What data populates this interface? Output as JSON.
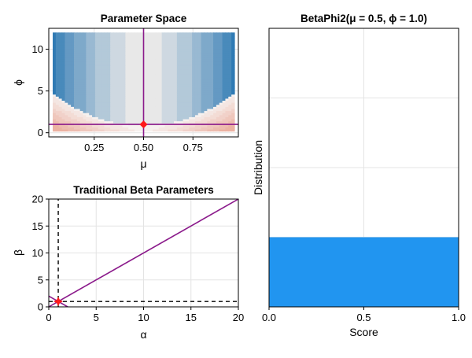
{
  "chart_data": [
    {
      "id": "parameter-space",
      "type": "heatmap",
      "title": "Parameter Space",
      "xlabel": "μ",
      "ylabel": "ϕ",
      "xlim": [
        0.02,
        0.98
      ],
      "ylim": [
        -0.5,
        12.5
      ],
      "xticks": [
        0.25,
        0.5,
        0.75
      ],
      "xtick_labels": [
        "0.25",
        "0.50",
        "0.75"
      ],
      "yticks": [
        0,
        5,
        10
      ],
      "ytick_labels": [
        "0",
        "5",
        "10"
      ],
      "field_phi_range": [
        0.2,
        12
      ],
      "selected_point": {
        "mu": 0.5,
        "phi": 1.0
      },
      "crosshair": {
        "mu": 0.5,
        "phi": 1.0
      },
      "colors": {
        "low": "#e9a28f",
        "mid": "#e8e8e8",
        "high": "#2f7ab4",
        "line": "#8b1a8b",
        "marker": "#ff1a1a"
      }
    },
    {
      "id": "traditional-beta",
      "type": "line",
      "title": "Traditional Beta Parameters",
      "xlabel": "α",
      "ylabel": "β",
      "xlim": [
        0,
        20
      ],
      "ylim": [
        0,
        20
      ],
      "xticks": [
        0,
        5,
        10,
        15,
        20
      ],
      "xtick_labels": [
        "0",
        "5",
        "10",
        "15",
        "20"
      ],
      "yticks": [
        0,
        5,
        10,
        15,
        20
      ],
      "ytick_labels": [
        "0",
        "5",
        "10",
        "15",
        "20"
      ],
      "series": [
        {
          "x": [
            0,
            20
          ],
          "y": [
            0,
            20
          ],
          "style": "solid"
        },
        {
          "x": [
            0,
            2
          ],
          "y": [
            2,
            0
          ],
          "style": "solid"
        },
        {
          "x": [
            1,
            1
          ],
          "y": [
            0,
            20
          ],
          "style": "dashed"
        },
        {
          "x": [
            0,
            20
          ],
          "y": [
            1,
            1
          ],
          "style": "dashed"
        }
      ],
      "selected_point": {
        "alpha": 1.0,
        "beta": 1.0
      },
      "colors": {
        "line": "#8b1a8b",
        "dashed": "#000000",
        "marker": "#ff1a1a"
      }
    },
    {
      "id": "betaphi2-distribution",
      "type": "area",
      "title": "BetaPhi2(μ = 0.5, ϕ =  1.0)",
      "xlabel": "Score",
      "ylabel": "Distribution",
      "xlim": [
        0,
        1
      ],
      "ylim": [
        0,
        4
      ],
      "xticks": [
        0,
        0.5,
        1
      ],
      "xtick_labels": [
        "0.0",
        "0.5",
        "1.0"
      ],
      "yticks": [
        1,
        2,
        3,
        4
      ],
      "x": [
        0,
        1
      ],
      "y": [
        1.0,
        1.0
      ],
      "colors": {
        "fill": "#2195f0"
      }
    }
  ]
}
